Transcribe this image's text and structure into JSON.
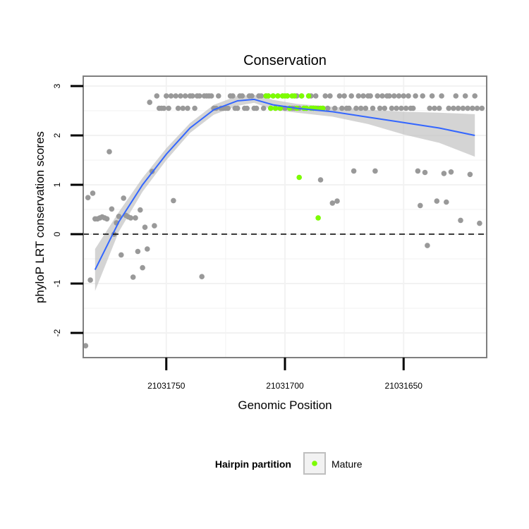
{
  "chart_data": {
    "type": "scatter",
    "title": "Conservation",
    "xlabel": "Genomic Position",
    "ylabel": "phyloP LRT conservation scores",
    "xlim": [
      21031785,
      21031615
    ],
    "ylim": [
      -2.5,
      3.2
    ],
    "x_reversed": true,
    "x_ticks": [
      21031750,
      21031700,
      21031650
    ],
    "x_tick_labels": [
      "21031750",
      "21031700",
      "21031650"
    ],
    "y_ticks": [
      -2,
      -1,
      0,
      1,
      2,
      3
    ],
    "y_tick_labels": [
      "-2",
      "-1",
      "0",
      "1",
      "2",
      "3"
    ],
    "hline": {
      "y": 0,
      "style": "dashed",
      "color": "#000000"
    },
    "grid": true,
    "colors": {
      "points": "#999999",
      "mature": "#7cfc00",
      "smooth": "#3366ff",
      "ribbon": "#bdbdbd",
      "panel_border": "#7f7f7f",
      "grid": "#f2f2f2"
    },
    "series": [
      {
        "name": "",
        "color": "#999999",
        "x": [
          21031784,
          21031783,
          21031782,
          21031781,
          21031780,
          21031779,
          21031778,
          21031777,
          21031776,
          21031775,
          21031774,
          21031773,
          21031772,
          21031771,
          21031770,
          21031769,
          21031768,
          21031767,
          21031766,
          21031765,
          21031764,
          21031763,
          21031762,
          21031761,
          21031760,
          21031759,
          21031758,
          21031757,
          21031756,
          21031755,
          21031754,
          21031753,
          21031752,
          21031751,
          21031750,
          21031749,
          21031748,
          21031747,
          21031746,
          21031745,
          21031744,
          21031743,
          21031742,
          21031741,
          21031740,
          21031739,
          21031738,
          21031737,
          21031736,
          21031735,
          21031734,
          21031733,
          21031732,
          21031731,
          21031730,
          21031729,
          21031728,
          21031727,
          21031726,
          21031725,
          21031724,
          21031723,
          21031722,
          21031721,
          21031720,
          21031719,
          21031718,
          21031717,
          21031716,
          21031715,
          21031714,
          21031713,
          21031712,
          21031711,
          21031710,
          21031709,
          21031708,
          21031707,
          21031706,
          21031705,
          21031704,
          21031703,
          21031702,
          21031701,
          21031700,
          21031699,
          21031698,
          21031697,
          21031696,
          21031695,
          21031694,
          21031693,
          21031692,
          21031691,
          21031690,
          21031689,
          21031688,
          21031687,
          21031686,
          21031685,
          21031684,
          21031683,
          21031682,
          21031681,
          21031680,
          21031679,
          21031678,
          21031677,
          21031676,
          21031675,
          21031674,
          21031673,
          21031672,
          21031671,
          21031670,
          21031669,
          21031668,
          21031667,
          21031666,
          21031665,
          21031664,
          21031663,
          21031662,
          21031661,
          21031660,
          21031659,
          21031658,
          21031657,
          21031656,
          21031655,
          21031654,
          21031653,
          21031652,
          21031651,
          21031650,
          21031649,
          21031648,
          21031647,
          21031646,
          21031645,
          21031644,
          21031643,
          21031642,
          21031641,
          21031640,
          21031639,
          21031638,
          21031637,
          21031636,
          21031635,
          21031634,
          21031633,
          21031632,
          21031631,
          21031630,
          21031629,
          21031628,
          21031627,
          21031626,
          21031625,
          21031624,
          21031623,
          21031622,
          21031621,
          21031620,
          21031619,
          21031618,
          21031617
        ],
        "y": [
          -2.26,
          0.74,
          -0.93,
          0.83,
          0.31,
          0.31,
          0.33,
          0.35,
          0.33,
          0.31,
          1.67,
          0.51,
          0.0,
          0.23,
          0.36,
          -0.42,
          0.73,
          0.38,
          0.35,
          0.33,
          -0.87,
          0.33,
          -0.35,
          0.49,
          -0.68,
          0.14,
          -0.3,
          2.67,
          1.27,
          0.17,
          2.8,
          2.55,
          2.55,
          2.55,
          2.8,
          2.55,
          2.8,
          0.68,
          2.8,
          2.55,
          2.8,
          2.55,
          2.8,
          2.55,
          2.8,
          2.8,
          2.55,
          2.8,
          2.8,
          -0.86,
          2.8,
          2.8,
          2.8,
          2.8,
          2.55,
          2.55,
          2.8,
          2.55,
          2.55,
          2.55,
          2.55,
          2.8,
          2.8,
          2.55,
          2.55,
          2.8,
          2.8,
          2.55,
          2.55,
          2.8,
          2.8,
          2.55,
          2.55,
          2.8,
          2.8,
          2.55,
          2.8,
          2.8,
          2.55,
          2.8,
          2.55,
          2.8,
          2.55,
          2.8,
          2.55,
          2.8,
          2.55,
          2.55,
          2.55,
          2.8,
          2.55,
          2.8,
          2.55,
          2.55,
          2.8,
          2.8,
          2.55,
          2.8,
          2.55,
          1.1,
          2.55,
          2.8,
          2.55,
          2.8,
          0.63,
          2.55,
          0.67,
          2.8,
          2.55,
          2.8,
          2.55,
          2.55,
          2.8,
          1.28,
          2.55,
          2.8,
          2.55,
          2.8,
          2.55,
          2.8,
          2.8,
          2.55,
          1.28,
          2.8,
          2.55,
          2.8,
          2.55,
          2.8,
          2.8,
          2.55,
          2.8,
          2.55,
          2.8,
          2.55,
          2.8,
          2.55,
          2.8,
          2.55,
          2.55,
          2.8,
          1.28,
          0.58,
          2.8,
          1.25,
          -0.23,
          2.55,
          2.8,
          2.55,
          0.67,
          2.55,
          2.8,
          1.23,
          0.65,
          2.55,
          1.26,
          2.55,
          2.8,
          2.55,
          0.28,
          2.55,
          2.8,
          2.55,
          1.21,
          2.55,
          2.8,
          2.55,
          0.22,
          2.55
        ]
      },
      {
        "name": "Mature",
        "color": "#7cfc00",
        "x": [
          21031708,
          21031707,
          21031706,
          21031705,
          21031704,
          21031703,
          21031702,
          21031701,
          21031700,
          21031699,
          21031698,
          21031697,
          21031696,
          21031695,
          21031694,
          21031693,
          21031692,
          21031691,
          21031690,
          21031689,
          21031688,
          21031687,
          21031686,
          21031685,
          21031684
        ],
        "y": [
          2.8,
          2.8,
          2.55,
          2.8,
          2.55,
          2.8,
          2.55,
          2.8,
          2.8,
          2.8,
          2.55,
          2.8,
          2.8,
          2.55,
          1.15,
          2.8,
          2.55,
          2.55,
          2.8,
          2.55,
          2.55,
          2.55,
          0.33,
          2.55,
          2.55
        ]
      }
    ],
    "smooth": {
      "x": [
        21031780,
        21031770,
        21031760,
        21031750,
        21031740,
        21031730,
        21031720,
        21031713,
        21031705,
        21031695,
        21031680,
        21031665,
        21031650,
        21031635,
        21031620
      ],
      "y": [
        -0.72,
        0.25,
        1.0,
        1.62,
        2.15,
        2.52,
        2.7,
        2.73,
        2.62,
        2.55,
        2.48,
        2.37,
        2.26,
        2.15,
        2.0
      ],
      "ci_low": [
        -1.15,
        0.05,
        0.86,
        1.5,
        2.05,
        2.42,
        2.6,
        2.66,
        2.52,
        2.46,
        2.38,
        2.23,
        2.02,
        1.85,
        1.57
      ],
      "ci_high": [
        -0.3,
        0.45,
        1.14,
        1.74,
        2.25,
        2.62,
        2.8,
        2.82,
        2.72,
        2.64,
        2.58,
        2.52,
        2.48,
        2.46,
        2.43
      ]
    },
    "legend": {
      "title": "Hairpin partition",
      "entries": [
        {
          "label": "Mature",
          "color": "#7cfc00"
        }
      ],
      "position": "bottom"
    }
  }
}
